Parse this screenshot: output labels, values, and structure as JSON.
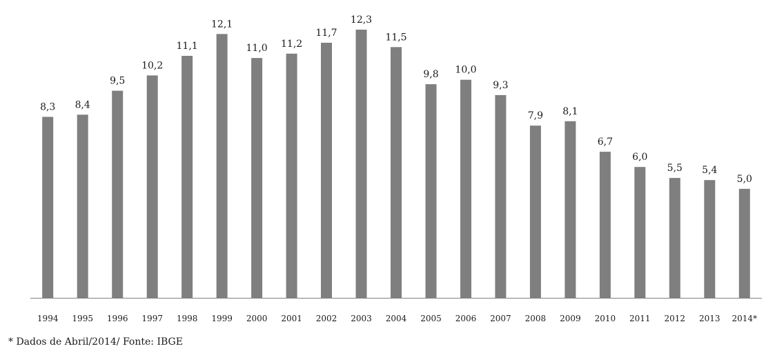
{
  "chart_data": {
    "type": "bar",
    "categories": [
      "1994",
      "1995",
      "1996",
      "1997",
      "1998",
      "1999",
      "2000",
      "2001",
      "2002",
      "2003",
      "2004",
      "2005",
      "2006",
      "2007",
      "2008",
      "2009",
      "2010",
      "2011",
      "2012",
      "2013",
      "2014*"
    ],
    "values": [
      8.3,
      8.4,
      9.5,
      10.2,
      11.1,
      12.1,
      11.0,
      11.2,
      11.7,
      12.3,
      11.5,
      9.8,
      10.0,
      9.3,
      7.9,
      8.1,
      6.7,
      6.0,
      5.5,
      5.4,
      5.0
    ],
    "data_labels": [
      "8,3",
      "8,4",
      "9,5",
      "10,2",
      "11,1",
      "12,1",
      "11,0",
      "11,2",
      "11,7",
      "12,3",
      "11,5",
      "9,8",
      "10,0",
      "9,3",
      "7,9",
      "8,1",
      "6,7",
      "6,0",
      "5,5",
      "5,4",
      "5,0"
    ],
    "title": "",
    "xlabel": "",
    "ylabel": "",
    "ylim": [
      0,
      12.3
    ],
    "grid": false,
    "bar_color": "#7f7f7f",
    "axis_color": "#808080"
  },
  "footnote": "* Dados de Abril/2014/ Fonte: IBGE"
}
